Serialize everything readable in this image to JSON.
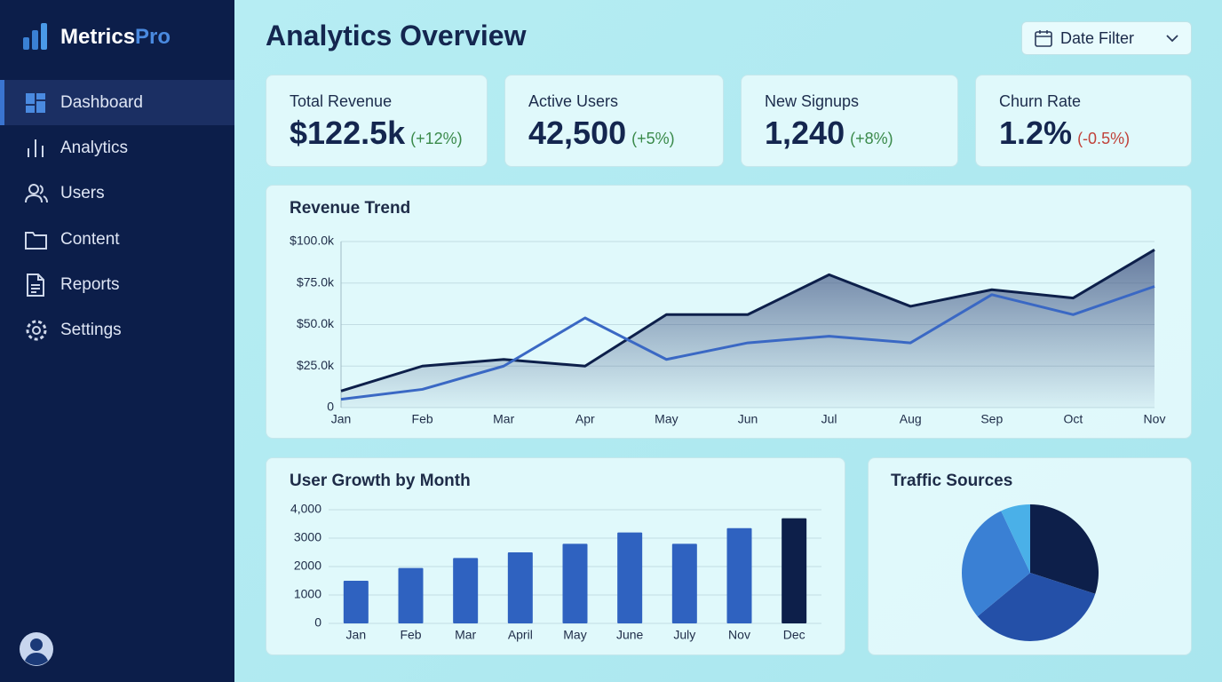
{
  "sidebar": {
    "brand_main": "Metrics",
    "brand_accent": "Pro",
    "nav": [
      "Dashboard",
      "Analytics",
      "Users",
      "Content",
      "Reports",
      "Settings"
    ]
  },
  "header": {
    "title": "Analytics Overview",
    "filter": "Date Filter"
  },
  "kpis": [
    {
      "label": "Total Revenue",
      "value": "$122.5k",
      "change": "(+12%)",
      "change_color": "#3a8a4a"
    },
    {
      "label": "Active Users",
      "value": "42,500",
      "change": "(+5%)",
      "change_color": "#3a8a4a"
    },
    {
      "label": "New Signups",
      "value": "1,240",
      "change": "(+8%)",
      "change_color": "#3a8a4a"
    },
    {
      "label": "Churn Rate",
      "value": "1.2%",
      "change": "(-0.5%)",
      "change_color": "#c0423a"
    }
  ],
  "chart_data": [
    {
      "type": "line",
      "title": "Revenue Trend",
      "categories": [
        "Jan",
        "Feb",
        "Mar",
        "Apr",
        "May",
        "Jun",
        "Jul",
        "Aug",
        "Sep",
        "Oct",
        "Nov"
      ],
      "series": [
        {
          "color": "#0d1f4a",
          "area": true,
          "values": [
            10000,
            25000,
            29000,
            25000,
            56000,
            56000,
            80000,
            61000,
            71000,
            66000,
            95000
          ]
        },
        {
          "color": "#3a68c4",
          "values": [
            5000,
            11000,
            25000,
            54000,
            29000,
            39000,
            43000,
            39000,
            68000,
            56000,
            73000
          ]
        }
      ],
      "ylim": [
        0,
        100000
      ],
      "yticks": [
        0,
        {
          "value": 25000,
          "label": "$25.0k"
        },
        {
          "value": 50000,
          "label": "$50.0k"
        },
        {
          "value": 75000,
          "label": "$75.0k"
        },
        {
          "value": 100000,
          "label": "$100.0k"
        }
      ],
      "grid": true
    },
    {
      "type": "bar",
      "title": "User Growth by Month",
      "categories": [
        "Jan",
        "Feb",
        "Mar",
        "April",
        "May",
        "June",
        "July",
        "Nov",
        "Dec"
      ],
      "values": [
        1500,
        1950,
        2300,
        2500,
        2800,
        3200,
        2800,
        3350,
        3700
      ],
      "colors": [
        "#2f62c0",
        "#2f62c0",
        "#2f62c0",
        "#2f62c0",
        "#2f62c0",
        "#2f62c0",
        "#2f62c0",
        "#2f62c0",
        "#0d1f4a"
      ],
      "ylim": [
        0,
        4000
      ],
      "yticks": [
        0,
        1000,
        2000,
        3000,
        {
          "value": 4000,
          "label": "4,000"
        }
      ],
      "grid": true
    },
    {
      "type": "pie",
      "title": "Traffic Sources",
      "values": [
        30,
        34,
        29,
        7
      ],
      "colors": [
        "#0d1f4a",
        "#2450a8",
        "#3a80d4",
        "#4ab0e8"
      ]
    }
  ]
}
